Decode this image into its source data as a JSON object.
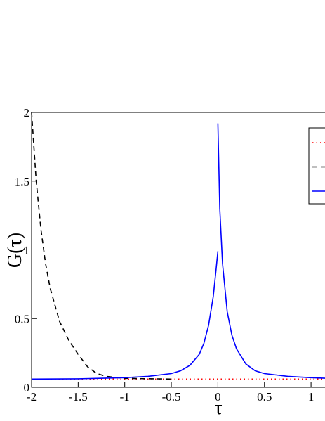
{
  "chart_data": {
    "type": "line",
    "x_label": "τ",
    "y_label": "G(τ)",
    "xlim": [
      -2,
      1.15
    ],
    "ylim": [
      0,
      2
    ],
    "xticks": [
      -2,
      -1.5,
      -1,
      -0.5,
      0,
      0.5,
      1
    ],
    "yticks": [
      0,
      0.5,
      1,
      1.5,
      2
    ],
    "series": [
      {
        "color": "#ff0000",
        "dash": "1.5 4",
        "x": [
          -2,
          1.15
        ],
        "values": [
          0.06,
          0.06
        ]
      },
      {
        "color": "#000000",
        "dash": "7 5",
        "x": [
          -2,
          -1.95,
          -1.9,
          -1.85,
          -1.8,
          -1.7,
          -1.6,
          -1.5,
          -1.4,
          -1.3,
          -1.2,
          -1,
          -0.5
        ],
        "values": [
          2,
          1.5,
          1.15,
          0.9,
          0.72,
          0.48,
          0.34,
          0.24,
          0.15,
          0.1,
          0.08,
          0.065,
          0.06
        ]
      },
      {
        "color": "#0000ff",
        "dash": "",
        "x": [
          -2,
          -1.5,
          -1,
          -0.75,
          -0.5,
          -0.4,
          -0.3,
          -0.2,
          -0.15,
          -0.1,
          -0.05,
          -0.02,
          0,
          0,
          0,
          0.02,
          0.05,
          0.1,
          0.15,
          0.2,
          0.3,
          0.4,
          0.5,
          0.75,
          1,
          1.15
        ],
        "values": [
          0.06,
          0.062,
          0.07,
          0.08,
          0.1,
          0.12,
          0.16,
          0.24,
          0.32,
          0.45,
          0.66,
          0.85,
          0.99,
          null,
          1.92,
          1.3,
          0.9,
          0.55,
          0.38,
          0.28,
          0.17,
          0.12,
          0.1,
          0.08,
          0.07,
          0.066
        ]
      }
    ]
  }
}
